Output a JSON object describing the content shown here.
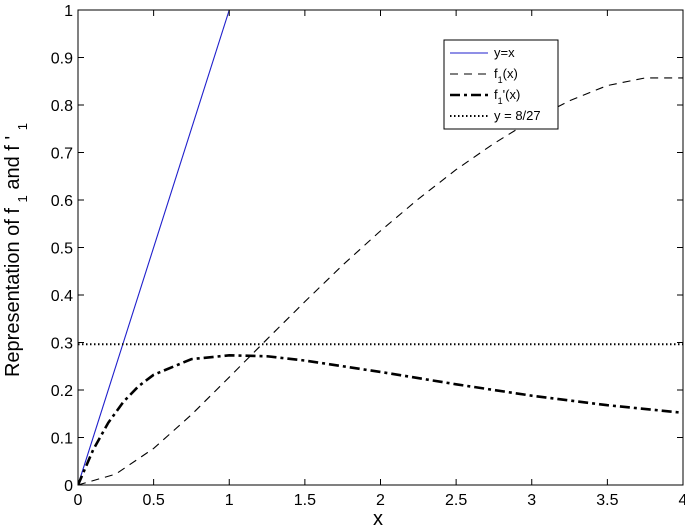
{
  "chart_data": {
    "type": "line",
    "title": "",
    "xlabel": "x",
    "ylabel": "Representation of f and f '",
    "ylabel_parts": {
      "pre": "Representation of",
      "f1": "f",
      "sub1": "1",
      "and": "and",
      "f2": "f",
      "prime": "'",
      "sub2": "1"
    },
    "xlim": [
      0,
      4
    ],
    "ylim": [
      0,
      1
    ],
    "xticks": [
      0,
      0.5,
      1,
      1.5,
      2,
      2.5,
      3,
      3.5,
      4
    ],
    "xtick_labels": [
      "0",
      "0.5",
      "1",
      "1.5",
      "2",
      "2.5",
      "3",
      "3.5",
      "4"
    ],
    "yticks": [
      0,
      0.1,
      0.2,
      0.3,
      0.4,
      0.5,
      0.6,
      0.7,
      0.8,
      0.9,
      1
    ],
    "ytick_labels": [
      "0",
      "0.1",
      "0.2",
      "0.3",
      "0.4",
      "0.5",
      "0.6",
      "0.7",
      "0.8",
      "0.9",
      "1"
    ],
    "grid": false,
    "legend_position": "top-right",
    "series": [
      {
        "name": "y=x",
        "legend": {
          "main": "y=x",
          "sub": "",
          "tail": ""
        },
        "style": "solid",
        "color": "#1f1fcc",
        "x": [
          0,
          1
        ],
        "y": [
          0,
          1
        ]
      },
      {
        "name": "f1(x)",
        "legend": {
          "main": "f",
          "sub": "1",
          "tail": "(x)"
        },
        "style": "dashed",
        "color": "#000000",
        "x": [
          0,
          0.25,
          0.5,
          0.75,
          1,
          1.25,
          1.5,
          1.75,
          2,
          2.25,
          2.5,
          2.75,
          3,
          3.25,
          3.5,
          3.75,
          4
        ],
        "y": [
          0,
          0.023,
          0.077,
          0.148,
          0.227,
          0.307,
          0.386,
          0.463,
          0.535,
          0.602,
          0.664,
          0.719,
          0.768,
          0.809,
          0.841,
          0.857,
          0.857
        ]
      },
      {
        "name": "f1'(x)",
        "legend": {
          "main": "f",
          "sub": "1",
          "tail": "'(x)"
        },
        "style": "dashdot",
        "color": "#000000",
        "x": [
          0,
          0.1,
          0.2,
          0.3,
          0.4,
          0.5,
          0.75,
          1,
          1.25,
          1.5,
          2,
          2.5,
          3,
          3.5,
          4
        ],
        "y": [
          0,
          0.074,
          0.131,
          0.175,
          0.208,
          0.232,
          0.265,
          0.273,
          0.271,
          0.262,
          0.238,
          0.212,
          0.188,
          0.168,
          0.152
        ]
      },
      {
        "name": "y = 8/27",
        "legend": {
          "main": "y = 8/27",
          "sub": "",
          "tail": ""
        },
        "style": "dotted",
        "color": "#000000",
        "x": [
          0,
          4
        ],
        "y": [
          0.2963,
          0.2963
        ]
      }
    ]
  }
}
